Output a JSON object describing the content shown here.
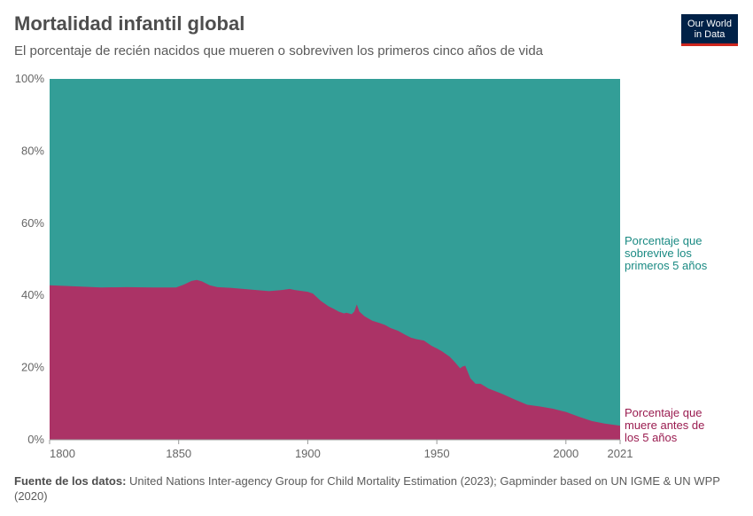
{
  "header": {
    "title": "Mortalidad infantil global",
    "subtitle": "El porcentaje de recién nacidos que mueren o sobreviven los primeros cinco años de vida"
  },
  "logo": {
    "line1": "Our World",
    "line2": "in Data"
  },
  "source": {
    "label": "Fuente de los datos:",
    "text": "United Nations Inter-agency Group for Child Mortality Estimation (2023); Gapminder based on UN IGME & UN WPP (2020)"
  },
  "colors": {
    "survive": "#339e97",
    "die": "#ab3366",
    "survive_text": "#1a8a83",
    "die_text": "#9a1c50"
  },
  "chart_data": {
    "type": "area",
    "stacked": true,
    "title": "Mortalidad infantil global",
    "xlim": [
      1800,
      2021
    ],
    "ylim": [
      0,
      100
    ],
    "y_ticks": [
      0,
      20,
      40,
      60,
      80,
      100
    ],
    "y_tick_labels": [
      "0%",
      "20%",
      "40%",
      "60%",
      "80%",
      "100%"
    ],
    "x_ticks": [
      1800,
      1850,
      1900,
      1950,
      2000,
      2021
    ],
    "x_tick_labels": [
      "1800",
      "1850",
      "1900",
      "1950",
      "2000",
      "2021"
    ],
    "series": [
      {
        "name": "Porcentaje que muere antes de los 5 años",
        "label_lines": [
          "Porcentaje que",
          "muere antes de",
          "los 5 años"
        ],
        "x": [
          1800,
          1810,
          1820,
          1830,
          1840,
          1845,
          1849,
          1852,
          1855,
          1857,
          1859,
          1862,
          1865,
          1870,
          1875,
          1880,
          1885,
          1890,
          1893,
          1895,
          1900,
          1902,
          1905,
          1908,
          1910,
          1912,
          1914,
          1915,
          1917,
          1918,
          1919,
          1920,
          1922,
          1925,
          1928,
          1930,
          1932,
          1935,
          1938,
          1940,
          1942,
          1945,
          1948,
          1950,
          1952,
          1955,
          1957,
          1959,
          1960,
          1961,
          1963,
          1965,
          1967,
          1970,
          1975,
          1980,
          1985,
          1990,
          1995,
          2000,
          2005,
          2010,
          2015,
          2021
        ],
        "y": [
          42.8,
          42.5,
          42.2,
          42.3,
          42.2,
          42.2,
          42.2,
          43.0,
          44.0,
          44.3,
          43.9,
          42.8,
          42.3,
          42.1,
          41.8,
          41.5,
          41.2,
          41.5,
          41.8,
          41.5,
          41.0,
          40.5,
          38.5,
          37.0,
          36.3,
          35.5,
          35.0,
          35.2,
          34.8,
          35.5,
          37.5,
          35.5,
          34.2,
          33.0,
          32.3,
          31.8,
          31.0,
          30.2,
          29.0,
          28.3,
          27.9,
          27.5,
          26.0,
          25.3,
          24.5,
          23.0,
          21.5,
          19.8,
          20.3,
          20.5,
          17.0,
          15.5,
          15.5,
          14.2,
          12.8,
          11.2,
          9.7,
          9.2,
          8.6,
          7.7,
          6.4,
          5.2,
          4.5,
          3.9
        ]
      },
      {
        "name": "Porcentaje que sobrevive los primeros 5 años",
        "label_lines": [
          "Porcentaje que",
          "sobrevive los",
          "primeros 5 años"
        ],
        "note": "complement of the first series (100 minus it)"
      }
    ]
  }
}
